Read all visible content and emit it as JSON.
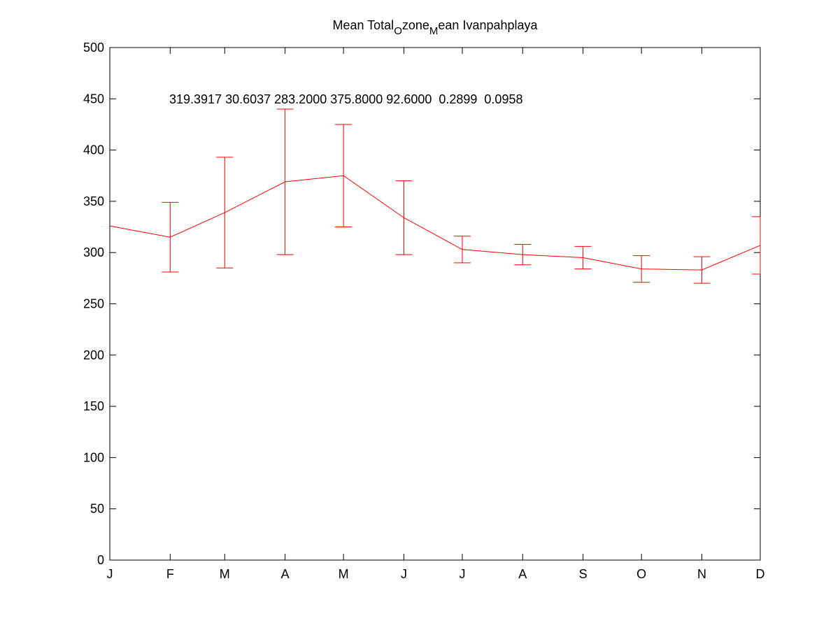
{
  "chart_data": {
    "type": "errorbar",
    "title": "Mean Total_Ozone_Mean Ivanpahplaya",
    "annotation": "319.3917 30.6037 283.2000 375.8000 92.6000  0.2899  0.0958",
    "x": [
      1,
      32,
      60,
      91,
      121,
      152,
      182,
      213,
      244,
      274,
      305,
      335
    ],
    "series": [
      {
        "color": "#ff0000",
        "values": [
          326,
          315,
          339,
          369,
          375,
          334,
          303,
          298,
          295,
          284,
          283,
          307
        ],
        "errors": [
          null,
          34,
          54,
          71,
          50,
          36,
          13,
          10,
          11,
          13,
          13,
          28
        ]
      }
    ],
    "xlim": [
      1,
      335
    ],
    "xticks": [
      {
        "value": 1,
        "label": "J"
      },
      {
        "value": 32,
        "label": "F"
      },
      {
        "value": 60,
        "label": "M"
      },
      {
        "value": 91,
        "label": "A"
      },
      {
        "value": 121,
        "label": "M"
      },
      {
        "value": 152,
        "label": "J"
      },
      {
        "value": 182,
        "label": "J"
      },
      {
        "value": 213,
        "label": "A"
      },
      {
        "value": 244,
        "label": "S"
      },
      {
        "value": 274,
        "label": "O"
      },
      {
        "value": 305,
        "label": "N"
      },
      {
        "value": 335,
        "label": "D"
      }
    ],
    "ylim": [
      0,
      500
    ],
    "yticks": [
      0,
      50,
      100,
      150,
      200,
      250,
      300,
      350,
      400,
      450,
      500
    ],
    "grid": false
  }
}
